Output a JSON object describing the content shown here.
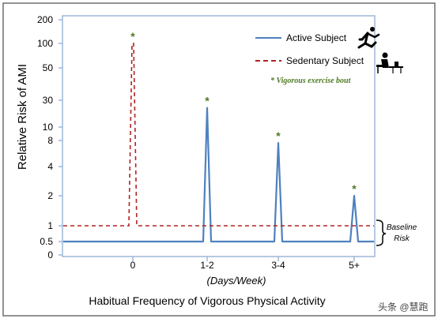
{
  "chart_data": {
    "type": "line",
    "ylabel": "Relative Risk of AMI",
    "xlabel": "Habitual Frequency of Vigorous Physical Activity",
    "x_unit_label": "(Days/Week)",
    "y_ticks": [
      "200",
      "100",
      "50",
      "30",
      "10",
      "8",
      "4",
      "2",
      "1",
      "0.5",
      "0"
    ],
    "categories": [
      "0",
      "1-2",
      "3-4",
      "5+"
    ],
    "series": [
      {
        "name": "Active Subject",
        "style": "solid",
        "color": "#4f81bd",
        "baseline": 0.5,
        "peaks": [
          22,
          7.5,
          2
        ]
      },
      {
        "name": "Sedentary Subject",
        "style": "dashed",
        "color": "#b22222",
        "baseline": 1,
        "peaks": [
          100
        ]
      }
    ],
    "annotation_marker": "*",
    "annotation_label": "Vigorous exercise bout",
    "annotation_color": "#4e7a23",
    "baseline_label": [
      "Baseline",
      "Risk"
    ],
    "legend_position": "top-right",
    "grid": false
  },
  "watermark": "头条 @慧跑"
}
